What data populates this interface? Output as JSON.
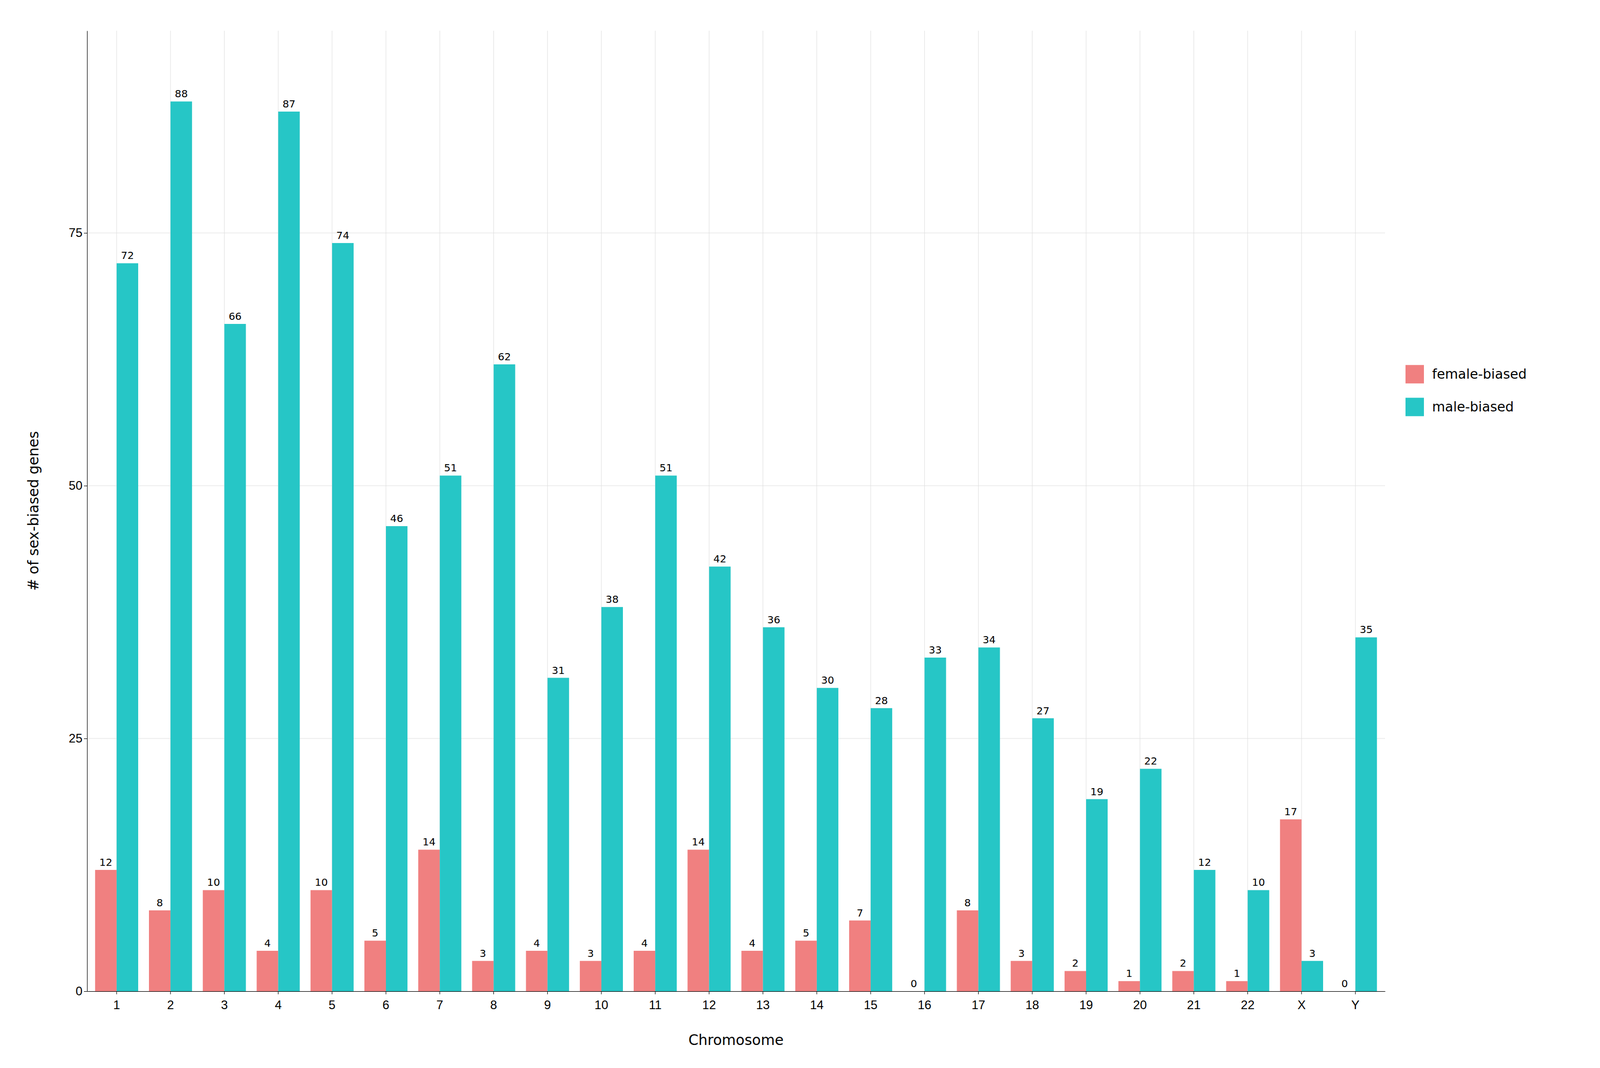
{
  "chart_data": {
    "type": "bar",
    "categories": [
      "1",
      "2",
      "3",
      "4",
      "5",
      "6",
      "7",
      "8",
      "9",
      "10",
      "11",
      "12",
      "13",
      "14",
      "15",
      "16",
      "17",
      "18",
      "19",
      "20",
      "21",
      "22",
      "X",
      "Y"
    ],
    "series": [
      {
        "name": "female-biased",
        "color": "#F08080",
        "values": [
          12,
          8,
          10,
          4,
          10,
          5,
          14,
          3,
          4,
          3,
          4,
          14,
          4,
          5,
          7,
          0,
          8,
          3,
          2,
          1,
          2,
          1,
          17,
          0
        ]
      },
      {
        "name": "male-biased",
        "color": "#26C6C6",
        "values": [
          72,
          88,
          66,
          87,
          74,
          46,
          51,
          62,
          31,
          38,
          51,
          42,
          36,
          30,
          28,
          33,
          34,
          27,
          19,
          22,
          12,
          10,
          3,
          35
        ]
      }
    ],
    "xlabel": "Chromosome",
    "ylabel": "# of sex-biased genes",
    "ylim": [
      0,
      95
    ],
    "yticks": [
      0,
      25,
      50,
      75
    ],
    "grid": true,
    "data_labels": true,
    "legend": "right"
  }
}
